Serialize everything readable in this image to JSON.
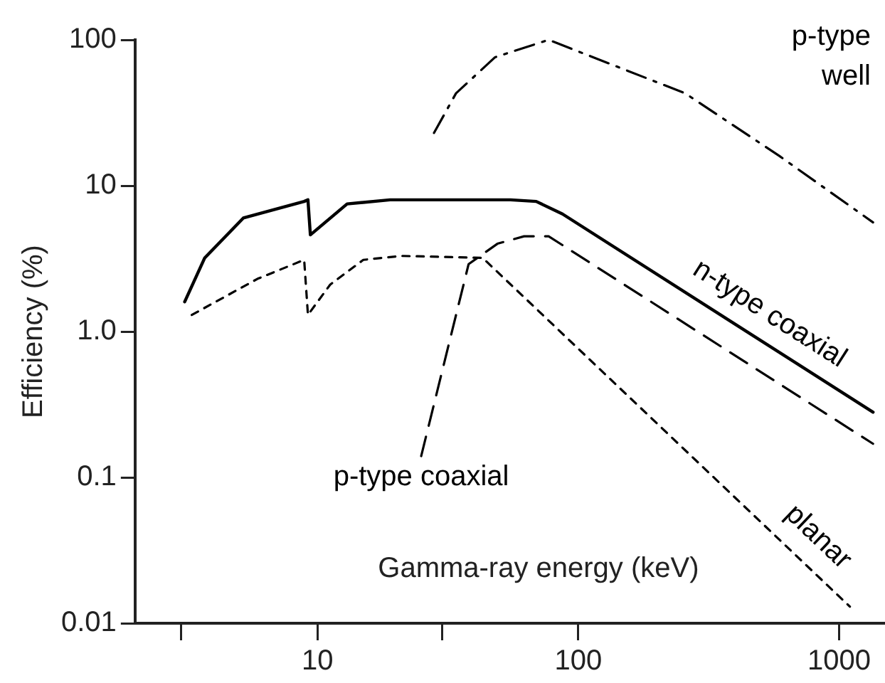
{
  "chart_data": {
    "type": "line",
    "xlabel": "Gamma-ray energy (keV)",
    "ylabel": "Efficiency (%)",
    "log": "xy",
    "grid": false,
    "legend": false,
    "marker": "none",
    "xlim": [
      2,
      1500
    ],
    "xticks": [
      {
        "value": 3,
        "label": null
      },
      10,
      {
        "value": 30,
        "label": null
      },
      100,
      1000
    ],
    "ylim": [
      0.01,
      100
    ],
    "yticks": [
      0.01,
      0.1,
      {
        "value": 1,
        "label": "1.0"
      },
      10,
      100
    ],
    "series": [
      {
        "name": "n-type coaxial",
        "color": "#000000",
        "line_style": "solid",
        "x": [
          3.1,
          3.7,
          5.2,
          8.9,
          9.2,
          9.4,
          13,
          19,
          55,
          69,
          87,
          1350
        ],
        "values": [
          1.6,
          3.2,
          6,
          7.8,
          8,
          4.6,
          7.5,
          8,
          8,
          7.8,
          6.4,
          0.28
        ]
      },
      {
        "name": "p-type coaxial",
        "color": "#000000",
        "line_style": "dashed",
        "x": [
          25,
          38,
          49,
          62,
          77,
          1350
        ],
        "values": [
          0.14,
          2.9,
          4,
          4.5,
          4.5,
          0.17
        ]
      },
      {
        "name": "planar",
        "color": "#000000",
        "line_style": "dotted",
        "x": [
          3.3,
          5.9,
          8.9,
          9.2,
          11.2,
          15,
          21,
          43,
          1100
        ],
        "values": [
          1.3,
          2.3,
          3.1,
          1.3,
          2.1,
          3.1,
          3.3,
          3.2,
          0.013
        ]
      },
      {
        "name": "p-type well",
        "color": "#000000",
        "line_style": "dashdot",
        "x": [
          28,
          34,
          48,
          77,
          257,
          590,
          1350
        ],
        "values": [
          23,
          43,
          76,
          100,
          43,
          16,
          5.6
        ]
      }
    ]
  }
}
